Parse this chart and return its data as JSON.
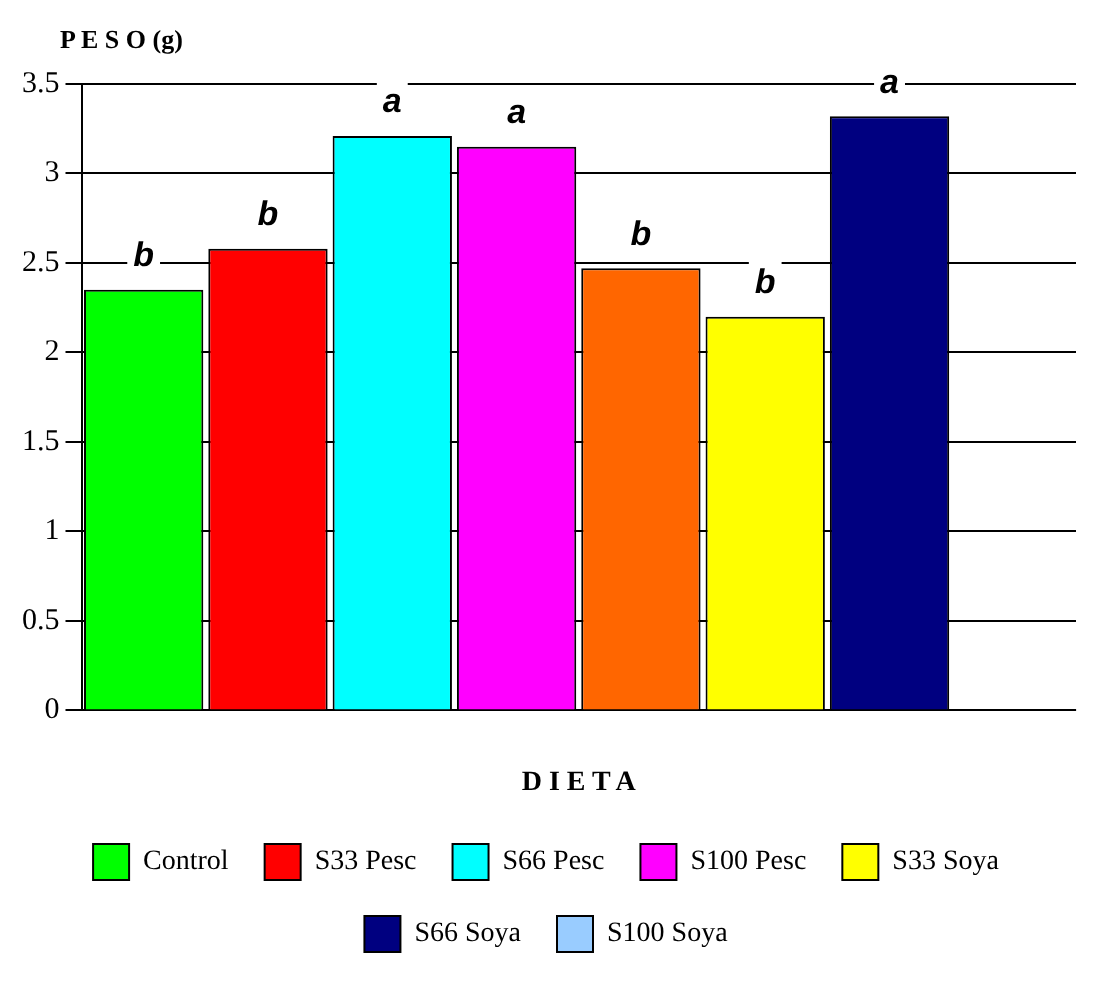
{
  "chart_data": {
    "type": "bar",
    "ylabel": "P E S O (g)",
    "xlabel": "D I E T A",
    "categories": [
      null
    ],
    "series": [
      {
        "name": "Control",
        "color": "#00ff00",
        "values": [
          2.35
        ]
      },
      {
        "name": "S33 Pesc",
        "color": "#ff0000",
        "values": [
          2.58
        ]
      },
      {
        "name": "S66 Pesc",
        "color": "#00ffff",
        "values": [
          3.21
        ]
      },
      {
        "name": "S100 Pesc",
        "color": "#ff00ff",
        "values": [
          3.15
        ]
      },
      {
        "color": "#ff6600",
        "values": [
          2.47
        ]
      },
      {
        "name": "S33 Soya",
        "color": "#ffff00",
        "values": [
          2.2
        ]
      },
      {
        "name": "S66 Soya",
        "color": "#000080",
        "values": [
          3.32
        ]
      },
      {
        "name": "S100 Soya",
        "color": "#99ccff",
        "values": [
          null
        ]
      }
    ],
    "annotations": [
      "b",
      "b",
      "a",
      "a",
      "b",
      "b",
      "a"
    ],
    "ylim": [
      0,
      3.5
    ],
    "yticks": [
      0,
      0.5,
      1,
      1.5,
      2,
      2.5,
      3,
      3.5
    ],
    "grid": "y",
    "legend": "bottom"
  }
}
